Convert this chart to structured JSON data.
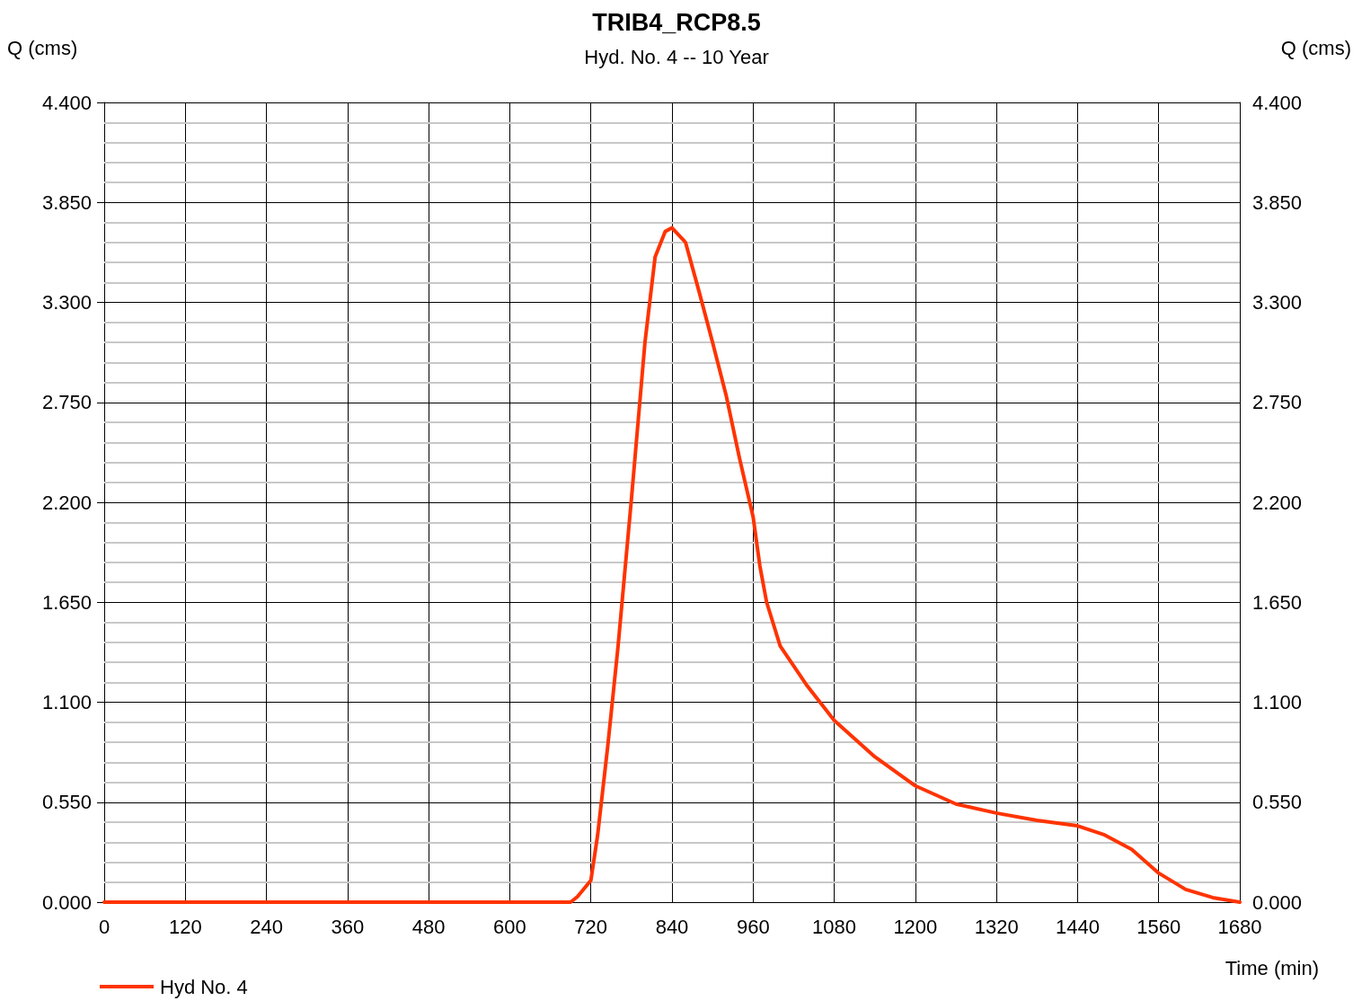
{
  "chart_data": {
    "type": "line",
    "title": "TRIB4_RCP8.5",
    "subtitle": "Hyd. No. 4 -- 10 Year",
    "xlabel": "Time (min)",
    "ylabel": "Q (cms)",
    "y2label": "Q (cms)",
    "series": [
      {
        "name": "Hyd No. 4",
        "color": "#ff3300",
        "x": [
          0,
          690,
          700,
          720,
          730,
          745,
          760,
          780,
          800,
          815,
          830,
          840,
          860,
          880,
          900,
          920,
          940,
          960,
          970,
          980,
          1000,
          1040,
          1080,
          1140,
          1200,
          1260,
          1320,
          1380,
          1440,
          1480,
          1520,
          1560,
          1600,
          1640,
          1680
        ],
        "values": [
          0,
          0,
          0.03,
          0.12,
          0.37,
          0.86,
          1.4,
          2.22,
          3.08,
          3.55,
          3.69,
          3.71,
          3.63,
          3.36,
          3.08,
          2.79,
          2.44,
          2.12,
          1.85,
          1.65,
          1.41,
          1.19,
          1.0,
          0.8,
          0.64,
          0.54,
          0.49,
          0.45,
          0.42,
          0.37,
          0.29,
          0.16,
          0.07,
          0.025,
          0
        ]
      }
    ],
    "xlim": [
      0,
      1680
    ],
    "xticks": [
      0,
      120,
      240,
      360,
      480,
      600,
      720,
      840,
      960,
      1080,
      1200,
      1320,
      1440,
      1560,
      1680
    ],
    "ylim": [
      0,
      4.4
    ],
    "yticks": [
      {
        "value": 0,
        "label": "0.000"
      },
      {
        "value": 0.55,
        "label": "0.550"
      },
      {
        "value": 1.1,
        "label": "1.100"
      },
      {
        "value": 1.65,
        "label": "1.650"
      },
      {
        "value": 2.2,
        "label": "2.200"
      },
      {
        "value": 2.75,
        "label": "2.750"
      },
      {
        "value": 3.3,
        "label": "3.300"
      },
      {
        "value": 3.85,
        "label": "3.850"
      },
      {
        "value": 4.4,
        "label": "4.400"
      }
    ],
    "y2lim": [
      0,
      4.4
    ],
    "y2ticks": [
      {
        "value": 0,
        "label": "0.000"
      },
      {
        "value": 0.55,
        "label": "0.550"
      },
      {
        "value": 1.1,
        "label": "1.100"
      },
      {
        "value": 1.65,
        "label": "1.650"
      },
      {
        "value": 2.2,
        "label": "2.200"
      },
      {
        "value": 2.75,
        "label": "2.750"
      },
      {
        "value": 3.3,
        "label": "3.300"
      },
      {
        "value": 3.85,
        "label": "3.850"
      },
      {
        "value": 4.4,
        "label": "4.400"
      }
    ],
    "grid": true,
    "legend": "bottom left",
    "marker": "none",
    "line_style": "solid"
  }
}
